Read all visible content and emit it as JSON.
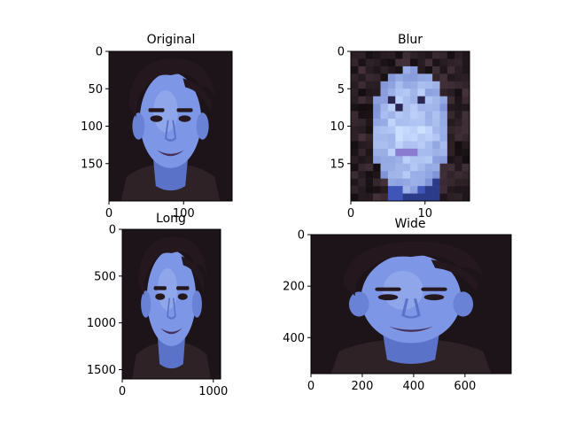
{
  "chart_data": [
    {
      "type": "image",
      "title": "Original",
      "xlim": [
        0,
        165
      ],
      "ylim": [
        200,
        0
      ],
      "x_ticks": [
        0,
        100
      ],
      "y_ticks": [
        0,
        50,
        100,
        150
      ],
      "content": "portrait-photo"
    },
    {
      "type": "heatmap",
      "title": "Blur",
      "xlim": [
        0,
        16
      ],
      "ylim": [
        20,
        0
      ],
      "x_ticks": [
        0,
        10
      ],
      "y_ticks": [
        0,
        5,
        10,
        15
      ],
      "content": "pixelated-portrait"
    },
    {
      "type": "image",
      "title": "Long",
      "xlim": [
        0,
        1080
      ],
      "ylim": [
        1600,
        0
      ],
      "x_ticks": [
        0,
        1000
      ],
      "y_ticks": [
        0,
        500,
        1000,
        1500
      ],
      "content": "portrait-photo-stretched-vertically"
    },
    {
      "type": "image",
      "title": "Wide",
      "xlim": [
        0,
        780
      ],
      "ylim": [
        540,
        0
      ],
      "x_ticks": [
        0,
        200,
        400,
        600
      ],
      "y_ticks": [
        0,
        200,
        400
      ],
      "content": "portrait-photo-stretched-horizontally"
    }
  ],
  "colors": {
    "skin": "#7d96e6",
    "skin_light": "#a9bbf2",
    "skin_shadow": "#5a72c8",
    "hair": "#24181e",
    "background": "#1c1418",
    "clothing": "#2e2226",
    "lips": "#46305a"
  }
}
